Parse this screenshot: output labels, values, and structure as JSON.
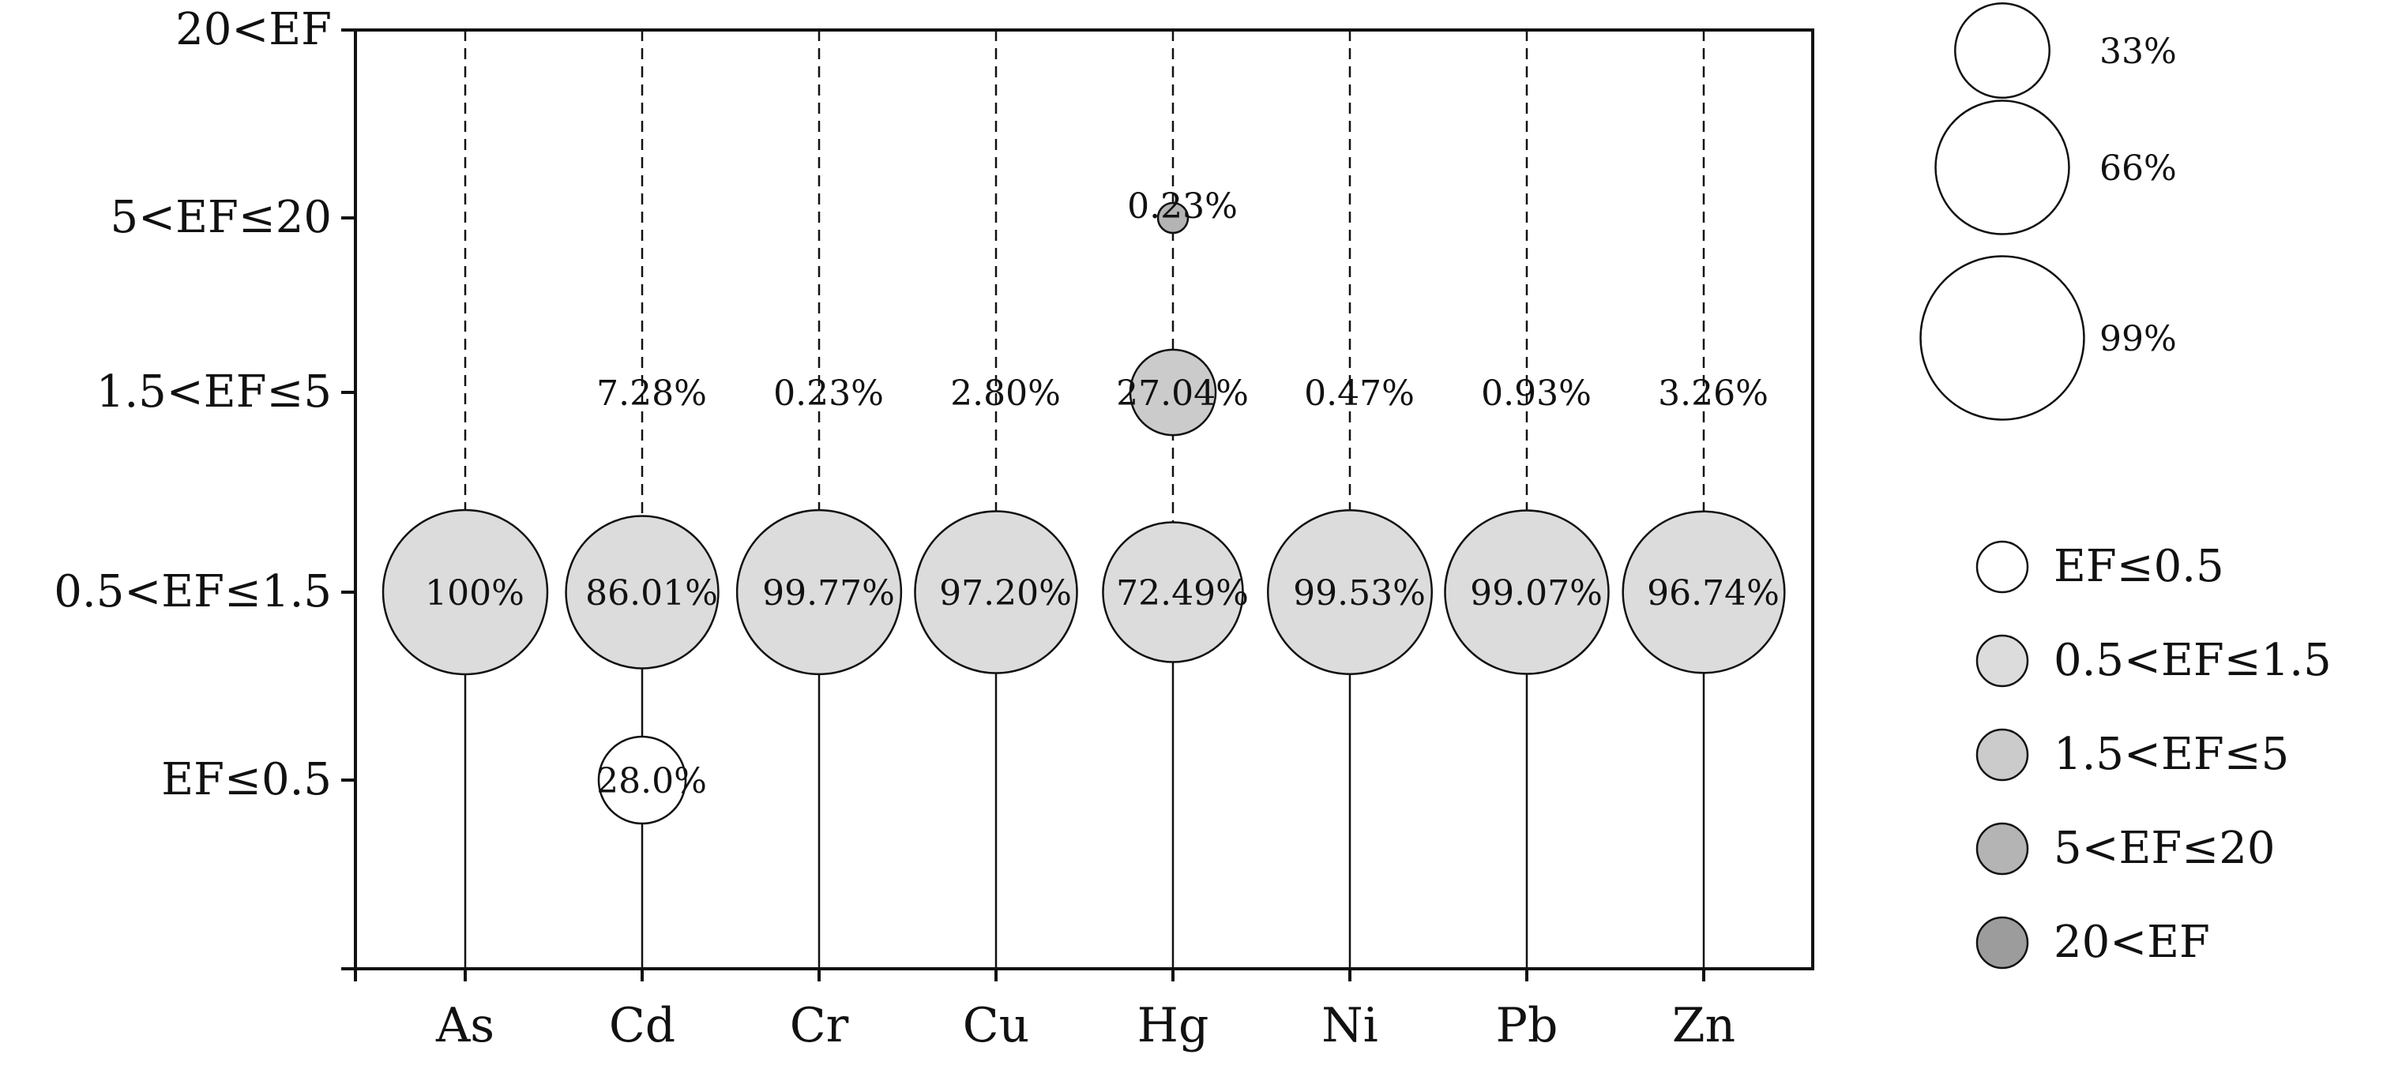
{
  "chart_data": {
    "type": "bubble",
    "categories": [
      "As",
      "Cd",
      "Cr",
      "Cu",
      "Hg",
      "Ni",
      "Pb",
      "Zn"
    ],
    "levels": [
      {
        "key": "L1",
        "label": "EF≤0.5",
        "fill": "#ffffff"
      },
      {
        "key": "L2",
        "label": "0.5<EF≤1.5",
        "fill": "#dcdcdc"
      },
      {
        "key": "L3",
        "label": "1.5<EF≤5",
        "fill": "#cbcbcb"
      },
      {
        "key": "L4",
        "label": "5<EF≤20",
        "fill": "#b4b4b4"
      },
      {
        "key": "L5",
        "label": "20<EF",
        "fill": "#9c9c9c"
      }
    ],
    "points": [
      {
        "element": "As",
        "level": 1,
        "percent": 100,
        "label": "100%"
      },
      {
        "element": "Cd",
        "level": 1,
        "percent": 86.01,
        "label": "86.01%"
      },
      {
        "element": "Cd",
        "level": 2,
        "percent": 7.28,
        "label": "7.28%"
      },
      {
        "element": "Cd",
        "level": 0,
        "percent": 28.0,
        "label": "28.0%"
      },
      {
        "element": "Cr",
        "level": 1,
        "percent": 99.77,
        "label": "99.77%"
      },
      {
        "element": "Cr",
        "level": 2,
        "percent": 0.23,
        "label": "0.23%"
      },
      {
        "element": "Cu",
        "level": 1,
        "percent": 97.2,
        "label": "97.20%"
      },
      {
        "element": "Cu",
        "level": 2,
        "percent": 2.8,
        "label": "2.80%"
      },
      {
        "element": "Hg",
        "level": 1,
        "percent": 72.49,
        "label": "72.49%"
      },
      {
        "element": "Hg",
        "level": 2,
        "percent": 27.04,
        "label": "27.04%"
      },
      {
        "element": "Hg",
        "level": 3,
        "percent": 0.23,
        "label": "0.23%"
      },
      {
        "element": "Ni",
        "level": 1,
        "percent": 99.53,
        "label": "99.53%"
      },
      {
        "element": "Ni",
        "level": 2,
        "percent": 0.47,
        "label": "0.47%"
      },
      {
        "element": "Pb",
        "level": 1,
        "percent": 99.07,
        "label": "99.07%"
      },
      {
        "element": "Pb",
        "level": 2,
        "percent": 0.93,
        "label": "0.93%"
      },
      {
        "element": "Zn",
        "level": 1,
        "percent": 96.74,
        "label": "96.74%"
      },
      {
        "element": "Zn",
        "level": 2,
        "percent": 3.26,
        "label": "3.26%"
      }
    ],
    "size_legend": [
      {
        "percent": 33,
        "label": "33%"
      },
      {
        "percent": 66,
        "label": "66%"
      },
      {
        "percent": 99,
        "label": "99%"
      }
    ],
    "grid": false,
    "legend_position": "right",
    "stroke_color": "#111111"
  }
}
